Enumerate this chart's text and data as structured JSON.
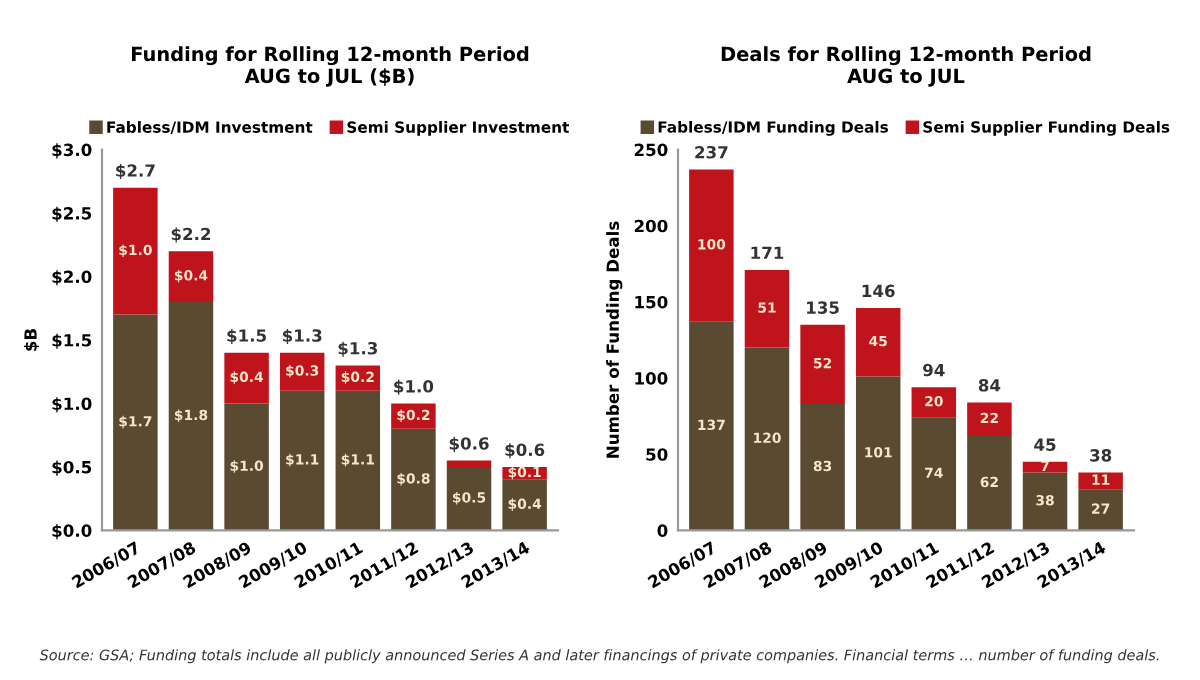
{
  "chart_data": [
    {
      "type": "bar",
      "stacked": true,
      "title": "Funding for Rolling 12-month Period\nAUG to JUL ($B)",
      "ylabel": "$B",
      "categories": [
        "2006/07",
        "2007/08",
        "2008/09",
        "2009/10",
        "2010/11",
        "2011/12",
        "2012/13",
        "2013/14"
      ],
      "series": [
        {
          "name": "Fabless/IDM Investment",
          "color": "#5a4a32",
          "values": [
            1.7,
            1.8,
            1.0,
            1.1,
            1.1,
            0.8,
            0.5,
            0.4
          ],
          "value_labels": [
            "$1.7",
            "$1.8",
            "$1.0",
            "$1.1",
            "$1.1",
            "$0.8",
            "$0.5",
            "$0.4"
          ]
        },
        {
          "name": "Semi Supplier Investment",
          "color": "#c0141c",
          "values": [
            1.0,
            0.4,
            0.4,
            0.3,
            0.2,
            0.2,
            0.05,
            0.1
          ],
          "value_labels": [
            "$1.0",
            "$0.4",
            "$0.4",
            "$0.3",
            "$0.2",
            "$0.2",
            null,
            "$0.1"
          ]
        }
      ],
      "totals": [
        "$2.7",
        "$2.2",
        "$1.5",
        "$1.3",
        "$1.3",
        "$1.0",
        "$0.6",
        "$0.6"
      ],
      "ylim": [
        0,
        3.0
      ],
      "yticks": [
        {
          "value": 0,
          "label": "$0.0"
        },
        {
          "value": 0.5,
          "label": "$0.5"
        },
        {
          "value": 1.0,
          "label": "$1.0"
        },
        {
          "value": 1.5,
          "label": "$1.5"
        },
        {
          "value": 2.0,
          "label": "$2.0"
        },
        {
          "value": 2.5,
          "label": "$2.5"
        },
        {
          "value": 3.0,
          "label": "$3.0"
        }
      ],
      "grid": false,
      "legend": "top",
      "annotations": [
        "Source: GSA; Funding totals include all publicly announced Series A and later financings of private companies. Financial terms … number of funding deals."
      ]
    },
    {
      "type": "bar",
      "stacked": true,
      "title": "Deals for Rolling 12-month Period\nAUG to JUL",
      "ylabel": "Number of Funding Deals",
      "categories": [
        "2006/07",
        "2007/08",
        "2008/09",
        "2009/10",
        "2010/11",
        "2011/12",
        "2012/13",
        "2013/14"
      ],
      "series": [
        {
          "name": "Fabless/IDM Funding Deals",
          "color": "#5a4a32",
          "values": [
            137,
            120,
            83,
            101,
            74,
            62,
            38,
            27
          ]
        },
        {
          "name": "Semi Supplier Funding Deals",
          "color": "#c0141c",
          "values": [
            100,
            51,
            52,
            45,
            20,
            22,
            7,
            11
          ]
        }
      ],
      "data_labels": true,
      "totals": [
        "237",
        "171",
        "135",
        "146",
        "94",
        "84",
        "45",
        "38"
      ],
      "ylim": [
        0,
        250
      ],
      "yticks": [
        0,
        50,
        100,
        150,
        200,
        250
      ],
      "grid": false,
      "legend": "top"
    }
  ]
}
